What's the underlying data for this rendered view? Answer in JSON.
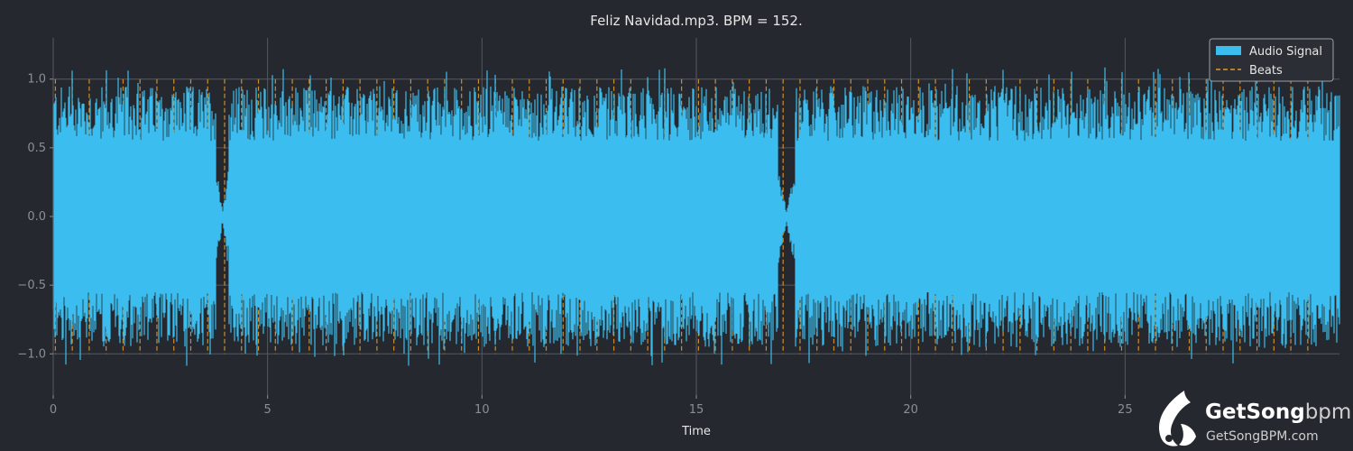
{
  "chart_data": {
    "type": "line",
    "title": "Feliz Navidad.mp3. BPM = 152.",
    "xlabel": "Time",
    "ylabel": "",
    "xlim": [
      0,
      30
    ],
    "ylim": [
      -1.3,
      1.3
    ],
    "xticks": [
      0,
      5,
      10,
      15,
      20,
      25
    ],
    "yticks": [
      1.0,
      0.5,
      0.0,
      -0.5,
      -1.0
    ],
    "x_tick_labels": [
      "0",
      "5",
      "10",
      "15",
      "20",
      "25"
    ],
    "y_tick_labels": [
      "1.0",
      "0.5",
      "0.0",
      "−0.5",
      "−1.0"
    ],
    "grid": true,
    "legend_position": "top-right",
    "series": [
      {
        "name": "Audio Signal",
        "kind": "waveform",
        "color": "#3bbdef",
        "x_range": [
          0.0,
          30.0
        ],
        "amplitude_approx": 1.0,
        "dropouts": [
          {
            "start": 3.8,
            "end": 4.1
          },
          {
            "start": 16.9,
            "end": 17.3
          }
        ]
      },
      {
        "name": "Beats",
        "kind": "vertical-lines",
        "color": "#e0982f",
        "bpm": 152,
        "first_beat": 0.05,
        "last_beat": 29.6
      }
    ]
  },
  "watermark": {
    "brand_prefix": "GetSong",
    "brand_suffix": "bpm",
    "url": "GetSongBPM.com",
    "icon": "music-note-bird-icon"
  },
  "colors": {
    "background": "#25282e",
    "plot_area": "#25282e",
    "grid": "#555a61",
    "text": "#e6e6e6",
    "tick_text": "#8a8f96",
    "signal": "#3bbdef",
    "beats": "#e0982f"
  }
}
